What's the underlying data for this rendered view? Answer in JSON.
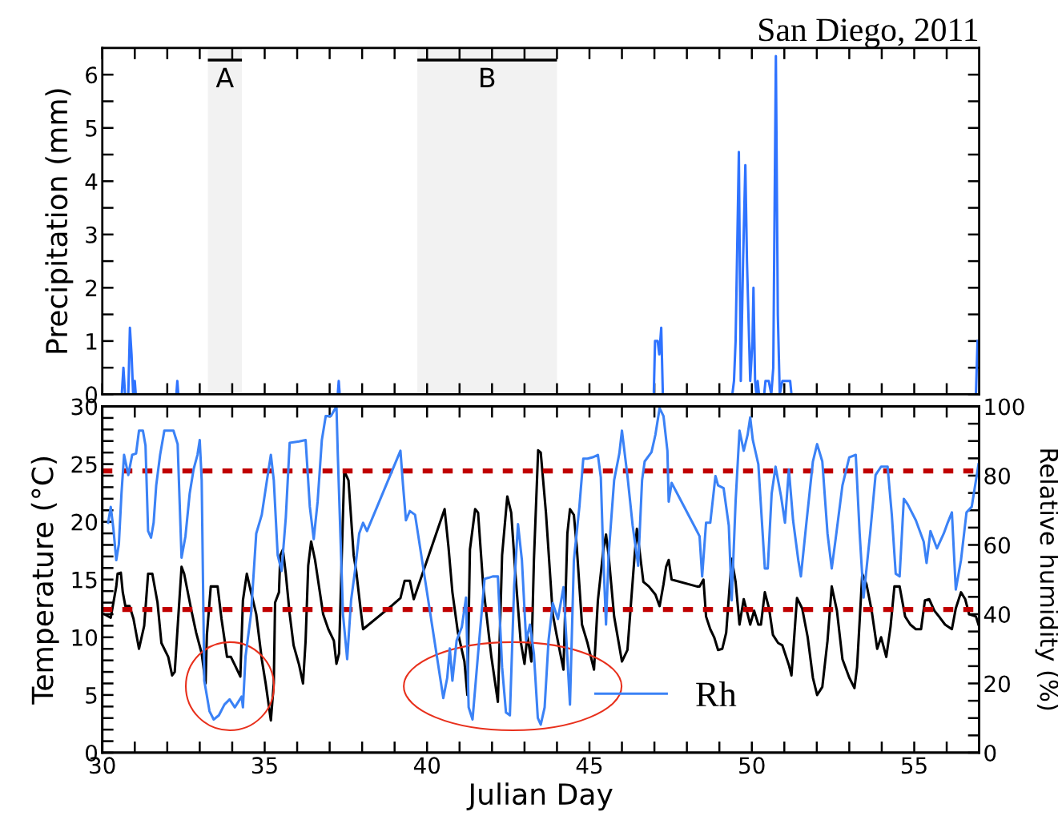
{
  "chart_data": [
    {
      "type": "line",
      "title": "San Diego, 2011",
      "ylabel": "Precipitation (mm)",
      "series": [
        {
          "color": "#2f73ff",
          "x": [
            30.0,
            30.6,
            30.65,
            30.7,
            30.8,
            30.85,
            30.9,
            30.95,
            30.97,
            31.0,
            31.03,
            32.28,
            32.31,
            32.34,
            37.25,
            37.28,
            37.31,
            46.98,
            47.02,
            47.1,
            47.15,
            47.21,
            47.26,
            49.4,
            49.45,
            49.5,
            49.6,
            49.66,
            49.73,
            49.8,
            49.85,
            49.95,
            50.02,
            50.05,
            50.1,
            50.14,
            50.18,
            50.22,
            50.38,
            50.42,
            50.52,
            50.6,
            50.66,
            50.74,
            50.8,
            50.86,
            50.94,
            51.18,
            51.22,
            56.9,
            56.95
          ],
          "values": [
            0,
            0,
            0.5,
            0,
            0,
            1.25,
            0.75,
            0,
            0.25,
            0.25,
            0,
            0,
            0.25,
            0,
            0,
            0.25,
            0,
            0,
            1.0,
            1.0,
            0.75,
            1.25,
            0,
            0,
            0.25,
            1.0,
            4.55,
            0.25,
            2.5,
            4.3,
            2.5,
            0.25,
            1.0,
            2.0,
            0.25,
            0,
            0.25,
            0,
            0,
            0.25,
            0.25,
            0,
            0.5,
            6.35,
            1.5,
            0,
            0.25,
            0.25,
            0,
            0,
            1.0
          ]
        }
      ],
      "xlim": [
        30,
        57
      ],
      "ylim": [
        0,
        6.5
      ],
      "xticks": [
        {
          "value": 30,
          "label": null
        },
        {
          "value": 31,
          "label": null
        },
        {
          "value": 32,
          "label": null
        },
        {
          "value": 33,
          "label": null
        },
        {
          "value": 34,
          "label": null
        },
        {
          "value": 35,
          "label": null
        },
        {
          "value": 36,
          "label": null
        },
        {
          "value": 37,
          "label": null
        },
        {
          "value": 38,
          "label": null
        },
        {
          "value": 39,
          "label": null
        },
        {
          "value": 40,
          "label": null
        },
        {
          "value": 41,
          "label": null
        },
        {
          "value": 42,
          "label": null
        },
        {
          "value": 43,
          "label": null
        },
        {
          "value": 44,
          "label": null
        },
        {
          "value": 45,
          "label": null
        },
        {
          "value": 46,
          "label": null
        },
        {
          "value": 47,
          "label": null
        },
        {
          "value": 48,
          "label": null
        },
        {
          "value": 49,
          "label": null
        },
        {
          "value": 50,
          "label": null
        },
        {
          "value": 51,
          "label": null
        },
        {
          "value": 52,
          "label": null
        },
        {
          "value": 53,
          "label": null
        },
        {
          "value": 54,
          "label": null
        },
        {
          "value": 55,
          "label": null
        },
        {
          "value": 56,
          "label": null
        }
      ],
      "yticks": [
        0,
        {
          "value": 0.5,
          "label": null
        },
        1,
        {
          "value": 1.5,
          "label": null
        },
        2,
        {
          "value": 2.5,
          "label": null
        },
        3,
        {
          "value": 3.5,
          "label": null
        },
        4,
        {
          "value": 4.5,
          "label": null
        },
        5,
        {
          "value": 5.5,
          "label": null
        },
        6
      ],
      "tick_labels": "y",
      "bands": [
        {
          "axis": "x",
          "from": 33.25,
          "to": 34.3,
          "label": "A",
          "color": "#000000"
        },
        {
          "axis": "x",
          "from": 39.7,
          "to": 44.0,
          "label": "B",
          "color": "#000000"
        }
      ]
    },
    {
      "type": "line",
      "xlabel": "Julian Day",
      "ylabel": "Temperature (°C)",
      "y2label": "Relative humidity (%)",
      "series": [
        {
          "color": "#000000",
          "x": [
            30.06,
            30.26,
            30.43,
            30.47,
            30.57,
            30.63,
            30.71,
            30.84,
            30.96,
            31.13,
            31.29,
            31.41,
            31.54,
            31.7,
            31.82,
            32.03,
            32.15,
            32.23,
            32.44,
            32.52,
            32.73,
            32.89,
            33.06,
            33.18,
            33.22,
            33.34,
            33.55,
            33.67,
            33.84,
            33.96,
            34.08,
            34.25,
            34.33,
            34.45,
            34.58,
            34.74,
            34.91,
            35.03,
            35.19,
            35.28,
            35.32,
            35.44,
            35.48,
            35.56,
            35.65,
            35.77,
            35.89,
            36.06,
            36.18,
            36.26,
            36.34,
            36.43,
            36.55,
            36.8,
            36.96,
            37.13,
            37.21,
            37.29,
            37.37,
            37.45,
            37.58,
            37.74,
            37.82,
            37.95,
            38.03,
            38.94,
            39.18,
            39.31,
            39.47,
            39.59,
            40.54,
            40.66,
            40.78,
            40.95,
            41.15,
            41.24,
            41.32,
            41.48,
            41.57,
            41.73,
            41.98,
            42.18,
            42.31,
            42.47,
            42.59,
            42.72,
            42.88,
            43.0,
            43.09,
            43.21,
            43.29,
            43.42,
            43.5,
            43.66,
            43.87,
            43.99,
            44.2,
            44.32,
            44.4,
            44.52,
            44.61,
            44.77,
            44.94,
            45.14,
            45.26,
            45.43,
            45.51,
            45.59,
            45.76,
            46.0,
            46.17,
            46.38,
            46.46,
            46.66,
            46.83,
            47.03,
            47.16,
            47.28,
            47.36,
            47.44,
            47.53,
            48.31,
            48.39,
            48.51,
            48.59,
            48.72,
            48.84,
            48.96,
            49.09,
            49.21,
            49.38,
            49.5,
            49.62,
            49.75,
            49.87,
            49.95,
            50.07,
            50.2,
            50.28,
            50.4,
            50.53,
            50.65,
            50.81,
            50.94,
            51.14,
            51.22,
            51.39,
            51.55,
            51.72,
            51.88,
            52.01,
            52.17,
            52.33,
            52.46,
            52.62,
            52.79,
            53.0,
            53.16,
            53.24,
            53.4,
            53.53,
            53.69,
            53.86,
            53.98,
            54.14,
            54.27,
            54.39,
            54.55,
            54.72,
            54.88,
            55.05,
            55.21,
            55.33,
            55.46,
            55.62,
            55.79,
            55.95,
            56.16,
            56.28,
            56.44,
            56.57,
            56.69,
            56.9,
            56.98
          ],
          "values": [
            12.0,
            11.7,
            14.4,
            15.5,
            15.6,
            13.9,
            12.7,
            12.7,
            11.6,
            9.0,
            11.0,
            15.5,
            15.5,
            13.0,
            9.5,
            8.3,
            6.7,
            7.0,
            16.1,
            15.5,
            12.5,
            10.4,
            8.6,
            6.0,
            10.2,
            14.4,
            14.4,
            11.6,
            8.3,
            8.3,
            7.6,
            6.6,
            13.2,
            15.5,
            13.9,
            12.0,
            8.1,
            6.0,
            2.8,
            6.0,
            13.0,
            13.9,
            17.1,
            17.6,
            15.5,
            12.0,
            9.3,
            7.6,
            6.0,
            9.7,
            16.2,
            18.3,
            16.7,
            12.0,
            10.7,
            9.7,
            7.7,
            8.6,
            16.7,
            24.4,
            23.6,
            17.1,
            15.7,
            12.5,
            10.7,
            12.8,
            13.4,
            14.9,
            14.9,
            13.3,
            21.1,
            17.8,
            13.9,
            10.4,
            7.9,
            5.0,
            17.6,
            21.1,
            20.8,
            14.4,
            8.3,
            4.4,
            17.1,
            22.2,
            20.8,
            15.5,
            9.7,
            7.7,
            10.2,
            7.9,
            16.7,
            26.2,
            26.0,
            20.8,
            12.0,
            10.2,
            7.2,
            19.0,
            21.1,
            20.6,
            17.8,
            11.1,
            9.5,
            7.2,
            13.2,
            17.6,
            18.9,
            17.1,
            11.8,
            7.9,
            8.9,
            16.7,
            19.4,
            14.8,
            14.4,
            13.7,
            12.7,
            14.6,
            16.1,
            16.7,
            15.0,
            14.4,
            14.4,
            15.0,
            11.8,
            10.7,
            10.0,
            8.9,
            9.0,
            10.4,
            16.8,
            14.8,
            11.1,
            13.3,
            12.0,
            11.1,
            12.3,
            11.1,
            11.1,
            13.9,
            12.5,
            10.2,
            9.5,
            9.3,
            7.6,
            6.7,
            13.4,
            12.5,
            10.0,
            6.5,
            5.0,
            5.7,
            9.7,
            14.4,
            12.3,
            8.1,
            6.5,
            5.6,
            7.4,
            15.5,
            14.6,
            12.3,
            9.0,
            10.0,
            8.3,
            10.9,
            14.4,
            14.4,
            11.8,
            11.1,
            10.7,
            10.7,
            13.2,
            13.3,
            12.3,
            11.7,
            11.1,
            10.7,
            12.5,
            13.9,
            13.3,
            12.0,
            11.8,
            11.1
          ]
        },
        {
          "name": "Rh",
          "color": "#3b82f6",
          "axis": "y2",
          "x": [
            30.18,
            30.26,
            30.34,
            30.43,
            30.51,
            30.59,
            30.67,
            30.8,
            30.92,
            31.04,
            31.13,
            31.25,
            31.33,
            31.41,
            31.5,
            31.58,
            31.66,
            31.78,
            31.91,
            32.19,
            32.32,
            32.44,
            32.56,
            32.69,
            32.81,
            32.93,
            33.0,
            33.06,
            33.14,
            33.3,
            33.43,
            33.59,
            33.76,
            33.92,
            34.08,
            34.29,
            34.33,
            34.41,
            34.58,
            34.74,
            34.91,
            35.07,
            35.19,
            35.28,
            35.4,
            35.52,
            35.65,
            35.77,
            36.06,
            36.26,
            36.39,
            36.51,
            36.63,
            36.76,
            36.88,
            37.04,
            37.21,
            37.25,
            37.33,
            37.41,
            37.54,
            37.66,
            37.78,
            37.91,
            38.03,
            38.15,
            39.18,
            39.26,
            39.35,
            39.47,
            39.63,
            40.5,
            40.62,
            40.7,
            40.78,
            40.91,
            41.07,
            41.2,
            41.28,
            41.4,
            41.57,
            41.77,
            41.89,
            42.02,
            42.18,
            42.31,
            42.43,
            42.55,
            42.68,
            42.8,
            42.92,
            43.05,
            43.17,
            43.29,
            43.41,
            43.5,
            43.62,
            43.74,
            43.87,
            44.03,
            44.2,
            44.4,
            44.52,
            44.69,
            44.81,
            44.94,
            45.1,
            45.26,
            45.35,
            45.43,
            45.51,
            45.59,
            45.76,
            45.92,
            46.0,
            46.17,
            46.33,
            46.5,
            46.62,
            46.7,
            46.91,
            47.03,
            47.16,
            47.28,
            47.4,
            47.44,
            47.53,
            48.31,
            48.39,
            48.47,
            48.59,
            48.72,
            48.88,
            48.96,
            49.13,
            49.29,
            49.38,
            49.5,
            49.62,
            49.75,
            49.87,
            49.95,
            50.03,
            50.2,
            50.4,
            50.49,
            50.61,
            50.73,
            50.9,
            51.02,
            51.14,
            51.27,
            51.43,
            51.51,
            51.68,
            51.88,
            52.01,
            52.17,
            52.33,
            52.46,
            52.58,
            52.79,
            53.0,
            53.2,
            53.32,
            53.44,
            53.65,
            53.81,
            53.98,
            54.18,
            54.31,
            54.43,
            54.55,
            54.68,
            54.8,
            55.05,
            55.29,
            55.38,
            55.5,
            55.7,
            55.91,
            56.03,
            56.16,
            56.28,
            56.44,
            56.61,
            56.77,
            56.98
          ],
          "values": [
            66.4,
            71.0,
            64.8,
            55.6,
            60.2,
            74.8,
            86.0,
            80.2,
            86.0,
            86.4,
            93.0,
            93.0,
            88.7,
            64.0,
            62.1,
            66.4,
            77.2,
            86.0,
            93.0,
            93.0,
            89.1,
            56.3,
            62.5,
            74.8,
            81.8,
            86.0,
            90.3,
            78.7,
            20.8,
            12.0,
            9.6,
            10.8,
            13.9,
            15.4,
            13.1,
            16.2,
            13.1,
            27.8,
            40.1,
            63.3,
            68.7,
            78.7,
            86.0,
            78.7,
            57.1,
            52.5,
            67.9,
            89.5,
            89.9,
            90.3,
            71.0,
            61.7,
            72.5,
            90.3,
            97.2,
            97.2,
            100,
            86.4,
            63.3,
            40.1,
            27.0,
            44.0,
            52.5,
            63.3,
            66.4,
            64.0,
            87.2,
            77.2,
            67.1,
            69.8,
            68.7,
            15.8,
            21.6,
            30.1,
            20.8,
            32.4,
            36.3,
            44.8,
            13.1,
            9.6,
            28.5,
            50.2,
            50.5,
            50.9,
            50.9,
            24.7,
            11.6,
            10.8,
            47.8,
            66.0,
            55.6,
            32.4,
            37.0,
            28.5,
            10.0,
            8.1,
            13.1,
            32.4,
            43.2,
            38.6,
            47.8,
            13.9,
            55.6,
            71.0,
            84.9,
            84.9,
            85.3,
            86.0,
            79.5,
            55.6,
            37.0,
            57.1,
            78.7,
            86.4,
            93.0,
            79.9,
            65.6,
            54.0,
            78.7,
            84.1,
            86.8,
            91.8,
            99.5,
            97.2,
            87.2,
            72.5,
            77.9,
            64.0,
            62.5,
            50.9,
            66.4,
            66.4,
            79.9,
            77.2,
            76.4,
            65.6,
            44.0,
            72.5,
            93.0,
            87.2,
            91.8,
            96.8,
            90.3,
            83.3,
            53.2,
            53.2,
            74.8,
            82.6,
            74.0,
            66.4,
            81.8,
            67.1,
            55.6,
            50.9,
            66.4,
            84.1,
            89.1,
            84.1,
            63.3,
            53.2,
            61.7,
            77.2,
            85.3,
            86.0,
            63.3,
            44.8,
            64.0,
            80.2,
            82.6,
            82.6,
            68.7,
            51.7,
            50.9,
            73.3,
            71.7,
            67.1,
            61.0,
            54.8,
            64.0,
            59.0,
            63.3,
            66.4,
            69.4,
            47.1,
            55.6,
            69.4,
            71.0,
            83.3
          ]
        }
      ],
      "xlim": [
        30,
        57
      ],
      "ylim": [
        0,
        30
      ],
      "y2lim": [
        0,
        100
      ],
      "xticks": [
        30,
        {
          "value": 31,
          "label": null
        },
        {
          "value": 32,
          "label": null
        },
        {
          "value": 33,
          "label": null
        },
        {
          "value": 34,
          "label": null
        },
        35,
        {
          "value": 36,
          "label": null
        },
        {
          "value": 37,
          "label": null
        },
        {
          "value": 38,
          "label": null
        },
        {
          "value": 39,
          "label": null
        },
        40,
        {
          "value": 41,
          "label": null
        },
        {
          "value": 42,
          "label": null
        },
        {
          "value": 43,
          "label": null
        },
        {
          "value": 44,
          "label": null
        },
        45,
        {
          "value": 46,
          "label": null
        },
        {
          "value": 47,
          "label": null
        },
        {
          "value": 48,
          "label": null
        },
        {
          "value": 49,
          "label": null
        },
        50,
        {
          "value": 51,
          "label": null
        },
        {
          "value": 52,
          "label": null
        },
        {
          "value": 53,
          "label": null
        },
        {
          "value": 54,
          "label": null
        },
        55,
        {
          "value": 56,
          "label": null
        }
      ],
      "yticks": [
        0,
        {
          "value": 1,
          "label": null
        },
        {
          "value": 2,
          "label": null
        },
        {
          "value": 3,
          "label": null
        },
        {
          "value": 4,
          "label": null
        },
        5,
        {
          "value": 6,
          "label": null
        },
        {
          "value": 7,
          "label": null
        },
        {
          "value": 8,
          "label": null
        },
        {
          "value": 9,
          "label": null
        },
        10,
        {
          "value": 11,
          "label": null
        },
        {
          "value": 12,
          "label": null
        },
        {
          "value": 13,
          "label": null
        },
        {
          "value": 14,
          "label": null
        },
        15,
        {
          "value": 16,
          "label": null
        },
        {
          "value": 17,
          "label": null
        },
        {
          "value": 18,
          "label": null
        },
        {
          "value": 19,
          "label": null
        },
        20,
        {
          "value": 21,
          "label": null
        },
        {
          "value": 22,
          "label": null
        },
        {
          "value": 23,
          "label": null
        },
        {
          "value": 24,
          "label": null
        },
        25,
        {
          "value": 26,
          "label": null
        },
        {
          "value": 27,
          "label": null
        },
        {
          "value": 28,
          "label": null
        },
        {
          "value": 29,
          "label": null
        },
        30
      ],
      "y2ticks": [
        0,
        {
          "value": 5,
          "label": null
        },
        {
          "value": 10,
          "label": null
        },
        {
          "value": 15,
          "label": null
        },
        20,
        {
          "value": 25,
          "label": null
        },
        {
          "value": 30,
          "label": null
        },
        {
          "value": 35,
          "label": null
        },
        40,
        {
          "value": 45,
          "label": null
        },
        {
          "value": 50,
          "label": null
        },
        {
          "value": 55,
          "label": null
        },
        60,
        {
          "value": 65,
          "label": null
        },
        {
          "value": 70,
          "label": null
        },
        {
          "value": 75,
          "label": null
        },
        80,
        {
          "value": 85,
          "label": null
        },
        {
          "value": 90,
          "label": null
        },
        {
          "value": 95,
          "label": null
        },
        100
      ],
      "ref_lines": [
        {
          "axis": "y",
          "value": 24.4,
          "color": "#c00000",
          "line_style": "dashed"
        },
        {
          "axis": "y",
          "value": 12.4,
          "color": "#c00000",
          "line_style": "dashed"
        }
      ],
      "legend": "bottom right"
    }
  ]
}
